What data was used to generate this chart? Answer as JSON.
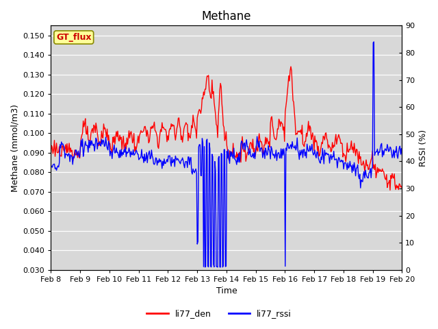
{
  "title": "Methane",
  "ylabel_left": "Methane (mmol/m3)",
  "ylabel_right": "RSSI (%)",
  "xlabel": "Time",
  "ylim_left": [
    0.03,
    0.155
  ],
  "ylim_right": [
    0,
    90
  ],
  "yticks_left": [
    0.03,
    0.04,
    0.05,
    0.06,
    0.07,
    0.08,
    0.09,
    0.1,
    0.11,
    0.12,
    0.13,
    0.14,
    0.15
  ],
  "yticks_right": [
    0,
    10,
    20,
    30,
    40,
    50,
    60,
    70,
    80,
    90
  ],
  "xtick_labels": [
    "Feb 8",
    "Feb 9",
    "Feb 10",
    "Feb 11",
    "Feb 12",
    "Feb 13",
    "Feb 14",
    "Feb 15",
    "Feb 16",
    "Feb 17",
    "Feb 18",
    "Feb 19",
    "Feb 20"
  ],
  "color_red": "#ff0000",
  "color_blue": "#0000ff",
  "legend_label_red": "li77_den",
  "legend_label_blue": "li77_rssi",
  "gt_flux_box_color": "#ffff99",
  "gt_flux_text_color": "#cc0000",
  "gt_flux_edge_color": "#888800",
  "plot_bg_color": "#d8d8d8",
  "fig_bg_color": "#ffffff",
  "grid_color": "#ffffff",
  "title_fontsize": 12,
  "axis_label_fontsize": 9,
  "tick_fontsize": 8,
  "legend_fontsize": 9,
  "line_width": 1.0
}
